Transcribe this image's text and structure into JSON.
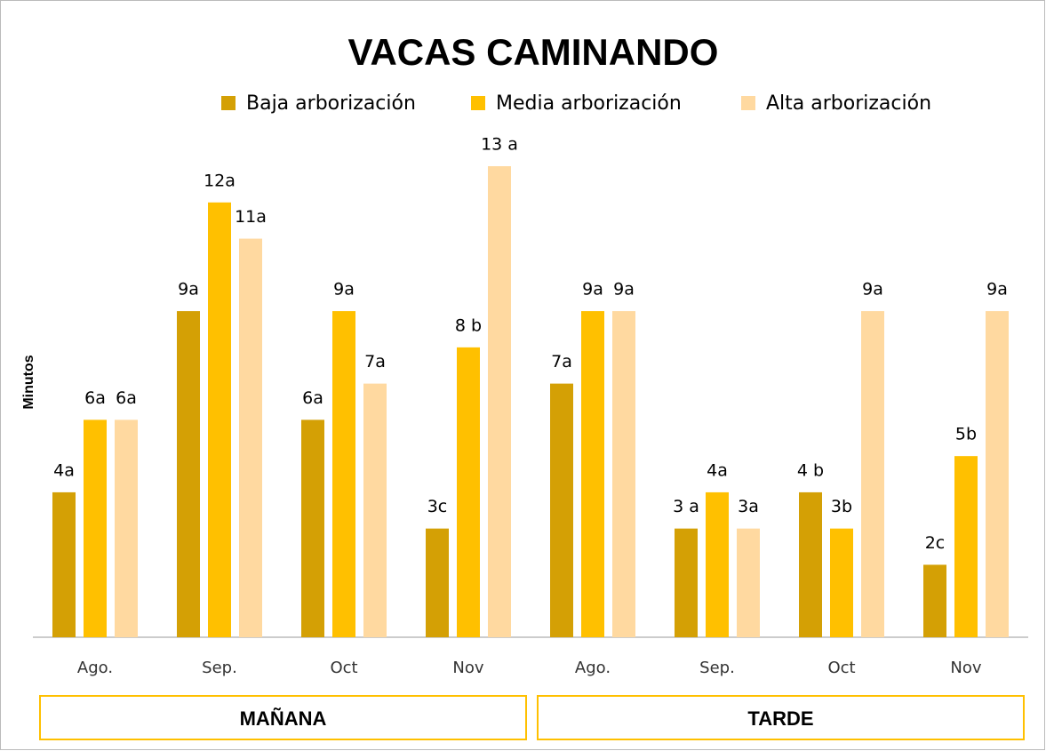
{
  "chart_data": {
    "type": "bar",
    "title": "VACAS CAMINANDO",
    "y_label": "Minutos",
    "categories": [
      "Ago.",
      "Sep.",
      "Oct",
      "Nov",
      "Ago.",
      "Sep.",
      "Oct",
      "Nov"
    ],
    "groups": [
      "MAÑANA",
      "TARDE"
    ],
    "series": [
      {
        "name": "Baja arborización",
        "color": "#d4a005",
        "values": [
          4,
          9,
          6,
          3,
          7,
          3,
          4,
          2
        ],
        "value_labels": [
          "4a",
          "9a",
          "6a",
          "3c",
          "7a",
          "3 a",
          "4 b",
          "2c"
        ]
      },
      {
        "name": "Media arborización",
        "color": "#ffc000",
        "values": [
          6,
          12,
          9,
          8,
          9,
          4,
          3,
          5
        ],
        "value_labels": [
          "6a",
          "12a",
          "9a",
          "8 b",
          "9a",
          "4a",
          "3b",
          "5b"
        ]
      },
      {
        "name": "Alta arborización",
        "color": "#ffd9a0",
        "values": [
          6,
          11,
          7,
          13,
          9,
          3,
          9,
          9
        ],
        "value_labels": [
          "6a",
          "11a",
          "7a",
          "13 a",
          "9a",
          "3a",
          "9a",
          "9a"
        ]
      }
    ],
    "ylim": [
      0,
      13
    ]
  }
}
